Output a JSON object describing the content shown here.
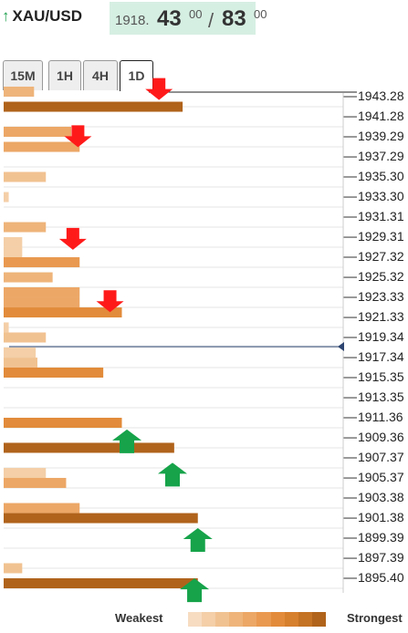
{
  "header": {
    "symbol": "XAU/USD",
    "bid_prefix": "1918.",
    "bid_big": "43",
    "bid_small": "00",
    "separator": "/",
    "ask_big": "83",
    "ask_small": "00"
  },
  "tabs": [
    {
      "label": "15M",
      "active": false
    },
    {
      "label": "1H",
      "active": false
    },
    {
      "label": "4H",
      "active": false
    },
    {
      "label": "1D",
      "active": true
    }
  ],
  "legend": {
    "weakest": "Weakest",
    "strongest": "Strongest"
  },
  "colors": {
    "up_arrow": "#16a34a",
    "down_arrow": "#ff1a1a",
    "current_price_line": "#2c4470",
    "strength_scale": [
      "#f7dcc1",
      "#f4cfa8",
      "#f1c291",
      "#eeb47a",
      "#eca766",
      "#e99950",
      "#e28b3a",
      "#d67f2d",
      "#c47223",
      "#b0631b"
    ]
  },
  "chart_data": {
    "type": "bar",
    "orientation": "horizontal",
    "ylabel": "",
    "price_labels": [
      "1943.28",
      "1941.28",
      "1939.29",
      "1937.29",
      "1935.30",
      "1933.30",
      "1931.31",
      "1929.31",
      "1927.32",
      "1925.32",
      "1923.33",
      "1921.33",
      "1919.34",
      "1917.34",
      "1915.35",
      "1913.35",
      "1911.36",
      "1909.36",
      "1907.37",
      "1905.37",
      "1903.38",
      "1901.38",
      "1899.39",
      "1897.39",
      "1895.40"
    ],
    "current_price": 1918.43,
    "strength_max": 10,
    "bars": [
      {
        "price": 1943.78,
        "strength": 1.8,
        "shade": 3
      },
      {
        "price": 1942.28,
        "strength": 10.6,
        "shade": 9
      },
      {
        "price": 1939.79,
        "strength": 4.0,
        "shade": 4
      },
      {
        "price": 1938.29,
        "strength": 4.5,
        "shade": 4
      },
      {
        "price": 1935.3,
        "strength": 2.5,
        "shade": 2
      },
      {
        "price": 1933.3,
        "strength": 0.3,
        "shade": 1
      },
      {
        "price": 1930.31,
        "strength": 2.5,
        "shade": 3
      },
      {
        "price": 1928.82,
        "strength": 1.1,
        "shade": 1
      },
      {
        "price": 1927.82,
        "strength": 1.1,
        "shade": 1
      },
      {
        "price": 1926.82,
        "strength": 4.5,
        "shade": 5
      },
      {
        "price": 1925.32,
        "strength": 2.9,
        "shade": 3
      },
      {
        "price": 1923.83,
        "strength": 4.5,
        "shade": 4
      },
      {
        "price": 1922.83,
        "strength": 4.5,
        "shade": 4
      },
      {
        "price": 1921.83,
        "strength": 7.0,
        "shade": 6
      },
      {
        "price": 1920.34,
        "strength": 0.3,
        "shade": 1
      },
      {
        "price": 1919.34,
        "strength": 2.5,
        "shade": 2
      },
      {
        "price": 1917.84,
        "strength": 1.9,
        "shade": 1
      },
      {
        "price": 1916.84,
        "strength": 2.0,
        "shade": 2
      },
      {
        "price": 1915.85,
        "strength": 5.9,
        "shade": 6
      },
      {
        "price": 1910.86,
        "strength": 7.0,
        "shade": 6
      },
      {
        "price": 1908.37,
        "strength": 10.1,
        "shade": 9
      },
      {
        "price": 1905.87,
        "strength": 2.5,
        "shade": 1
      },
      {
        "price": 1904.88,
        "strength": 3.7,
        "shade": 4
      },
      {
        "price": 1902.38,
        "strength": 4.5,
        "shade": 4
      },
      {
        "price": 1901.38,
        "strength": 11.5,
        "shade": 9
      },
      {
        "price": 1896.4,
        "strength": 1.1,
        "shade": 2
      },
      {
        "price": 1894.9,
        "strength": 11.5,
        "shade": 9
      }
    ],
    "arrows": [
      {
        "direction": "down",
        "price": 1943.5,
        "strength": 9.2
      },
      {
        "direction": "down",
        "price": 1938.8,
        "strength": 4.4
      },
      {
        "direction": "down",
        "price": 1928.6,
        "strength": 4.1
      },
      {
        "direction": "down",
        "price": 1922.4,
        "strength": 6.3
      },
      {
        "direction": "up",
        "price": 1909.1,
        "strength": 7.3
      },
      {
        "direction": "up",
        "price": 1905.8,
        "strength": 10.0
      },
      {
        "direction": "up",
        "price": 1899.3,
        "strength": 11.5
      },
      {
        "direction": "up",
        "price": 1894.3,
        "strength": 11.3
      }
    ]
  }
}
